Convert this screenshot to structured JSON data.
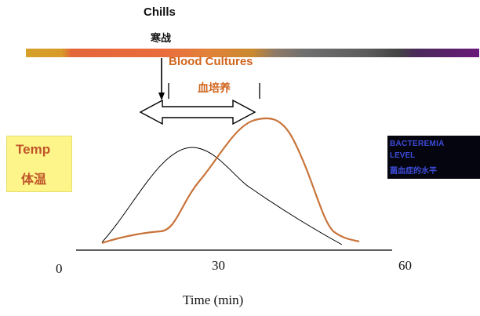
{
  "labels": {
    "chills": "Chills",
    "chills_cn": "寒战",
    "blood_cultures": "Blood Cultures",
    "blood_cultures_cn": "血培养",
    "temp": "Temp",
    "temp_cn": "体温",
    "bacteremia_line1": "BACTEREMIA",
    "bacteremia_line2": "LEVEL",
    "bacteremia_cn": "菌血症的水平"
  },
  "axis": {
    "ticks": [
      "0",
      "30",
      "60"
    ],
    "xlabel": "Time (min)"
  },
  "colors": {
    "orange_curve": "#c8743a",
    "blood_cultures_text": "#d0651e",
    "temp_box": "#fdf58a",
    "temp_text": "#c0552a",
    "bacteremia_bg": "#05050f",
    "bacteremia_text": "#3d4bd8",
    "bar_segments": [
      "#d59a25",
      "#e8683a",
      "#ec7a3e",
      "#d38a2a",
      "#8a7a66",
      "#6a6a6a",
      "#505050",
      "#3a2a4a",
      "#6a1a7a"
    ]
  }
}
